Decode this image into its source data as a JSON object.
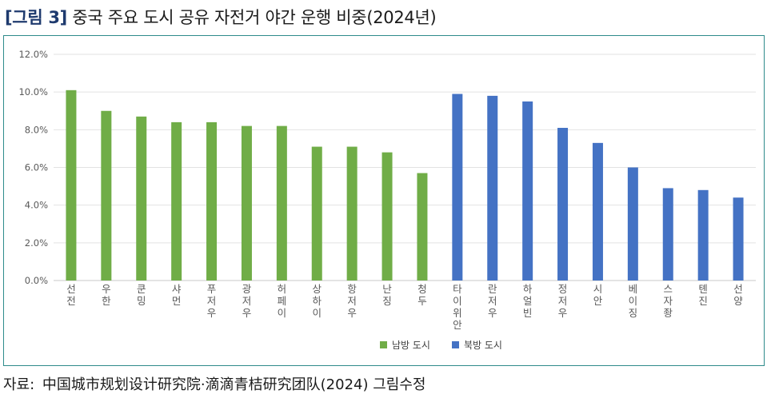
{
  "title": {
    "tag": "[그림 3]",
    "text": "중국 주요 도시 공유 자전거 야간 운행 비중(2024년)"
  },
  "source": {
    "label": "자료:",
    "text": "中国城市规划设计研究院·滴滴青桔研究团队(2024) 그림수정"
  },
  "chart_data": {
    "type": "bar",
    "title": "중국 주요 도시 공유 자전거 야간 운행 비중(2024년)",
    "xlabel": "",
    "ylabel": "",
    "ylim": [
      0,
      12
    ],
    "y_ticks": [
      "0.0%",
      "2.0%",
      "4.0%",
      "6.0%",
      "8.0%",
      "10.0%",
      "12.0%"
    ],
    "grid": true,
    "legend_position": "bottom",
    "colors": {
      "south": "#70ad47",
      "north": "#4472c4"
    },
    "categories": [
      "선전",
      "우한",
      "쿤밍",
      "샤먼",
      "푸저우",
      "광저우",
      "허페이",
      "상하이",
      "항저우",
      "난징",
      "청두",
      "타이위안",
      "란저우",
      "하얼빈",
      "정저우",
      "시안",
      "베이징",
      "스자좡",
      "톈진",
      "선양"
    ],
    "series": [
      {
        "name": "남방 도시",
        "color": "#70ad47",
        "values": [
          10.1,
          9.0,
          8.7,
          8.4,
          8.4,
          8.2,
          8.2,
          7.1,
          7.1,
          6.8,
          5.7,
          null,
          null,
          null,
          null,
          null,
          null,
          null,
          null,
          null
        ]
      },
      {
        "name": "북방 도시",
        "color": "#4472c4",
        "values": [
          null,
          null,
          null,
          null,
          null,
          null,
          null,
          null,
          null,
          null,
          null,
          9.9,
          9.8,
          9.5,
          8.1,
          7.3,
          6.0,
          4.9,
          4.8,
          4.4
        ]
      }
    ]
  }
}
